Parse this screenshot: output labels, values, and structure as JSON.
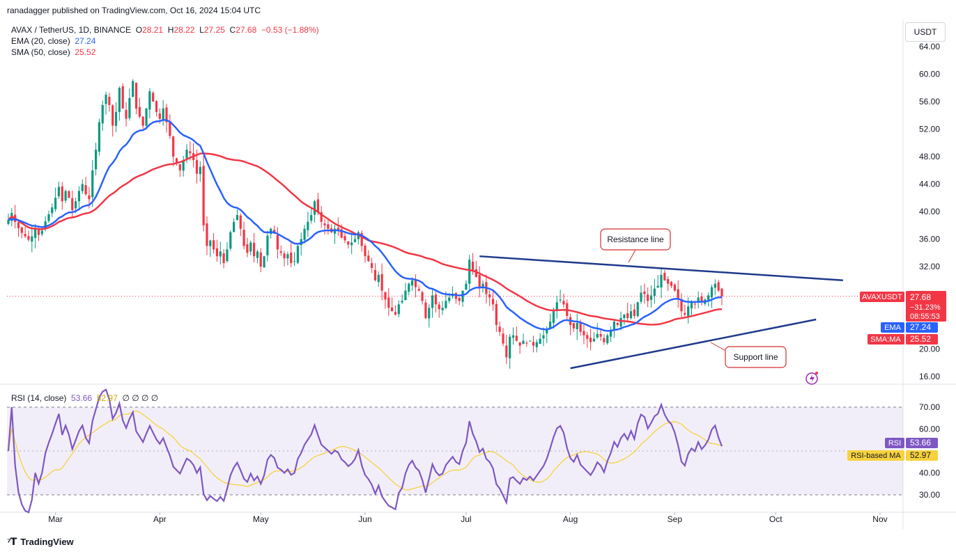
{
  "header": {
    "publish_line": "ranadagger published on TradingView.com, Oct 16, 2024 15:04 UTC"
  },
  "legend": {
    "symbol_line": "AVAX / TetherUS, 1D, BINANCE",
    "o_label": "O",
    "o_value": "28.21",
    "h_label": "H",
    "h_value": "28.22",
    "l_label": "L",
    "l_value": "27.25",
    "c_label": "C",
    "c_value": "27.68",
    "change": "−0.53 (−1.88%)",
    "ema_label": "EMA (20, close)",
    "ema_value": "27.24",
    "sma_label": "SMA (50, close)",
    "sma_value": "25.52"
  },
  "rsi_legend": {
    "label": "RSI (14, close)",
    "rsi_value": "53.66",
    "ma_value": "52.97",
    "zeros": "∅ ∅ ∅ ∅"
  },
  "currency_button": "USDT",
  "price_axis": {
    "ticks": [
      "64.00",
      "60.00",
      "56.00",
      "52.00",
      "48.00",
      "44.00",
      "40.00",
      "36.00",
      "32.00",
      "20.00",
      "16.00"
    ],
    "tick_values": [
      64,
      60,
      56,
      52,
      48,
      44,
      40,
      36,
      32,
      20,
      16
    ],
    "current_label": "AVAXUSDT",
    "current_price": "27.68",
    "current_change": "−31.23%",
    "countdown": "08:55:53",
    "ema_tag": "EMA",
    "ema_tag_value": "27.24",
    "sma_tag": "SMA:MA",
    "sma_tag_value": "25.52"
  },
  "rsi_axis": {
    "ticks": [
      "70.00",
      "60.00",
      "40.00",
      "30.00"
    ],
    "tick_values": [
      70,
      60,
      40,
      30
    ],
    "rsi_tag": "RSI",
    "rsi_tag_value": "53.66",
    "ma_tag": "RSI-based MA",
    "ma_tag_value": "52.97"
  },
  "time_axis": [
    "Mar",
    "Apr",
    "May",
    "Jun",
    "Jul",
    "Aug",
    "Sep",
    "Oct",
    "Nov"
  ],
  "annotations": {
    "resistance": "Resistance line",
    "support": "Support line"
  },
  "branding": "TradingView",
  "colors": {
    "up": "#089981",
    "down": "#f23645",
    "ema": "#2962ff",
    "sma": "#f23645",
    "rsi": "#7e57c2",
    "rsi_ma": "#f7d23e",
    "trendline": "#1e3a8a"
  },
  "chart_data": {
    "type": "candlestick",
    "title": "AVAX / TetherUS, 1D, BINANCE",
    "start_date": "2024-02-16",
    "x_range_days": [
      0,
      280
    ],
    "price_range": [
      16.5,
      66
    ],
    "closes": [
      38.8,
      39.8,
      38.5,
      37.6,
      36.9,
      36.4,
      35.9,
      36.4,
      37.5,
      36.6,
      37.2,
      38.6,
      39.6,
      40.6,
      42.0,
      43.6,
      41.5,
      43.0,
      42.0,
      40.2,
      41.5,
      43.0,
      44.0,
      42.5,
      41.8,
      46.0,
      49.0,
      53.0,
      55.5,
      57.0,
      55.5,
      52.5,
      54.5,
      58.0,
      55.0,
      53.5,
      56.5,
      59.0,
      55.0,
      53.8,
      52.5,
      55.0,
      57.5,
      56.0,
      54.5,
      53.5,
      55.0,
      53.0,
      51.0,
      48.0,
      47.0,
      46.0,
      47.5,
      49.0,
      48.5,
      47.5,
      45.5,
      46.5,
      38.0,
      35.0,
      35.8,
      34.5,
      33.5,
      34.2,
      32.5,
      34.5,
      37.0,
      38.5,
      39.5,
      37.5,
      35.0,
      34.0,
      35.5,
      33.5,
      34.2,
      32.0,
      33.5,
      36.5,
      37.5,
      36.8,
      34.5,
      34.0,
      33.2,
      33.8,
      32.5,
      32.8,
      35.0,
      36.0,
      37.5,
      38.5,
      39.5,
      41.5,
      40.0,
      38.5,
      38.0,
      37.5,
      37.0,
      37.5,
      37.2,
      36.2,
      35.8,
      35.2,
      35.5,
      36.0,
      37.0,
      35.0,
      33.5,
      32.8,
      31.8,
      30.0,
      30.8,
      28.5,
      27.2,
      26.0,
      25.5,
      25.0,
      26.5,
      27.0,
      28.5,
      29.5,
      30.0,
      29.0,
      28.5,
      27.0,
      24.5,
      26.0,
      27.8,
      26.5,
      25.8,
      26.0,
      27.0,
      27.5,
      28.0,
      27.3,
      27.0,
      28.5,
      29.5,
      33.0,
      31.5,
      30.5,
      29.0,
      29.5,
      28.0,
      27.5,
      26.5,
      23.5,
      22.5,
      20.8,
      18.8,
      21.8,
      22.0,
      21.2,
      20.5,
      21.2,
      20.8,
      21.2,
      20.5,
      21.0,
      21.5,
      22.0,
      22.8,
      24.0,
      25.5,
      26.8,
      27.2,
      26.5,
      24.8,
      23.5,
      23.0,
      23.8,
      22.5,
      22.0,
      21.5,
      21.0,
      21.5,
      22.2,
      21.8,
      21.0,
      22.0,
      22.8,
      24.0,
      23.5,
      24.5,
      25.0,
      24.5,
      25.5,
      24.8,
      26.8,
      28.2,
      28.0,
      27.0,
      27.8,
      28.8,
      29.2,
      30.8,
      30.0,
      29.5,
      29.2,
      28.5,
      27.3,
      25.5,
      25.0,
      26.2,
      26.8,
      26.5,
      27.5,
      26.8,
      27.2,
      27.8,
      29.0,
      29.5,
      28.5,
      27.68
    ],
    "ema20_final": 27.24,
    "sma50_final": 25.52,
    "rsi_range": [
      22,
      78
    ],
    "rsi_final": 53.66,
    "rsi_ma_final": 52.97,
    "rsi_bands": [
      70,
      30
    ],
    "resistance_line": {
      "from": {
        "day": 140,
        "price": 33.5
      },
      "to": {
        "day": 248,
        "price": 30.0
      }
    },
    "support_line": {
      "from": {
        "day": 167,
        "price": 17.2
      },
      "to": {
        "day": 240,
        "price": 24.3
      }
    }
  }
}
